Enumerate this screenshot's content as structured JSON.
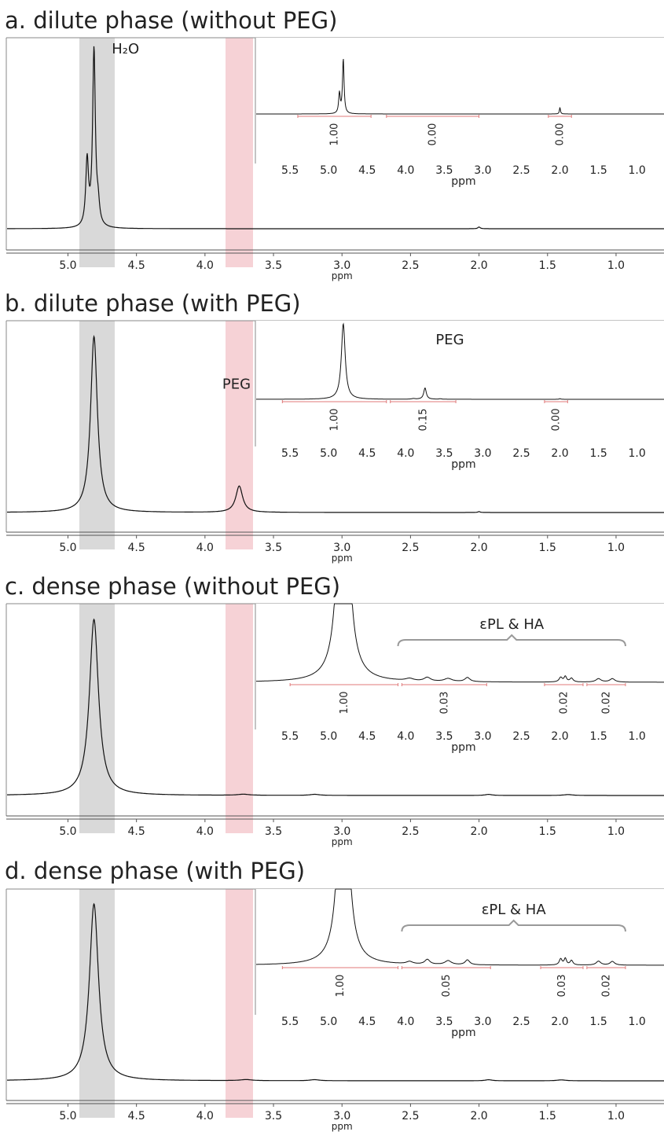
{
  "colors": {
    "water_band": "#d9d9d9",
    "peg_band": "#f6d2d6",
    "spectrum": "#111111",
    "integral": "#e07a7a",
    "brace": "#999999"
  },
  "chart_data": [
    {
      "type": "line",
      "title": "a. dilute phase (without PEG)",
      "xlabel": "ppm",
      "xlim": [
        5.45,
        0.65
      ],
      "xticks": [
        5.0,
        4.5,
        4.0,
        3.5,
        3.0,
        2.5,
        2.0,
        1.5,
        1.0
      ],
      "peaks": [
        {
          "ppm": 4.81,
          "height": 1.0,
          "width": 0.012
        },
        {
          "ppm": 4.86,
          "height": 0.37,
          "width": 0.012
        },
        {
          "ppm": 4.78,
          "height": 0.1,
          "width": 0.012
        },
        {
          "ppm": 2.0,
          "height": 0.01,
          "width": 0.01
        }
      ],
      "labels": [
        {
          "text": "H₂O",
          "ppm": 4.58,
          "level": 0.31
        }
      ],
      "inset": {
        "xlim": [
          5.95,
          0.65
        ],
        "xticks": [
          5.5,
          5.0,
          4.5,
          4.0,
          3.5,
          3.0,
          2.5,
          2.0,
          1.5,
          1.0
        ],
        "xlabel": "ppm",
        "peaks": [
          {
            "ppm": 4.81,
            "height": 1.0,
            "width": 0.012
          },
          {
            "ppm": 4.86,
            "height": 0.37,
            "width": 0.012
          },
          {
            "ppm": 2.0,
            "height": 0.12,
            "width": 0.008
          }
        ],
        "scale": 9,
        "integrals": [
          {
            "from": 5.4,
            "to": 4.45,
            "value": "1.00"
          },
          {
            "from": 4.25,
            "to": 3.05,
            "value": "0.00"
          },
          {
            "from": 2.15,
            "to": 1.85,
            "value": "0.00"
          }
        ],
        "labels": [],
        "brace": null
      }
    },
    {
      "type": "line",
      "title": "b. dilute phase (with PEG)",
      "xlabel": "ppm",
      "xlim": [
        5.45,
        0.65
      ],
      "xticks": [
        5.0,
        4.5,
        4.0,
        3.5,
        3.0,
        2.5,
        2.0,
        1.5,
        1.0
      ],
      "peaks": [
        {
          "ppm": 4.81,
          "height": 1.0,
          "width": 0.03
        },
        {
          "ppm": 3.75,
          "height": 0.15,
          "width": 0.03
        },
        {
          "ppm": 2.0,
          "height": 0.005,
          "width": 0.01
        }
      ],
      "labels": [
        {
          "text": "PEG",
          "ppm": 3.77,
          "level": 0.22
        }
      ],
      "inset": {
        "xlim": [
          5.95,
          0.65
        ],
        "xticks": [
          5.5,
          5.0,
          4.5,
          4.0,
          3.5,
          3.0,
          2.5,
          2.0,
          1.5,
          1.0
        ],
        "xlabel": "ppm",
        "peaks": [
          {
            "ppm": 4.81,
            "height": 1.0,
            "width": 0.03
          },
          {
            "ppm": 3.75,
            "height": 0.15,
            "width": 0.02
          },
          {
            "ppm": 3.9,
            "height": 0.008,
            "width": 0.03
          },
          {
            "ppm": 3.55,
            "height": 0.006,
            "width": 0.02
          },
          {
            "ppm": 2.0,
            "height": 0.008,
            "width": 0.012
          }
        ],
        "scale": 12,
        "integrals": [
          {
            "from": 5.6,
            "to": 4.25,
            "value": "1.00"
          },
          {
            "from": 4.2,
            "to": 3.35,
            "value": "0.15"
          },
          {
            "from": 2.2,
            "to": 1.9,
            "value": "0.00"
          }
        ],
        "labels": [
          {
            "text": "PEG",
            "ppm": 3.55,
            "level": 0.85
          }
        ],
        "brace": null
      }
    },
    {
      "type": "line",
      "title": "c. dense phase (without PEG)",
      "xlabel": "ppm",
      "xlim": [
        5.45,
        0.65
      ],
      "xticks": [
        5.0,
        4.5,
        4.0,
        3.5,
        3.0,
        2.5,
        2.0,
        1.5,
        1.0
      ],
      "peaks": [
        {
          "ppm": 4.81,
          "height": 1.0,
          "width": 0.04
        },
        {
          "ppm": 3.72,
          "height": 0.006,
          "width": 0.05
        },
        {
          "ppm": 3.2,
          "height": 0.006,
          "width": 0.04
        },
        {
          "ppm": 1.93,
          "height": 0.006,
          "width": 0.03
        },
        {
          "ppm": 1.35,
          "height": 0.005,
          "width": 0.04
        }
      ],
      "labels": [],
      "inset": {
        "xlim": [
          5.95,
          0.65
        ],
        "xticks": [
          5.5,
          5.0,
          4.5,
          4.0,
          3.5,
          3.0,
          2.5,
          2.0,
          1.5,
          1.0
        ],
        "xlabel": "ppm",
        "peaks": [
          {
            "ppm": 4.81,
            "height": 1.0,
            "width": 0.06
          },
          {
            "ppm": 3.95,
            "height": 0.006,
            "width": 0.06
          },
          {
            "ppm": 3.72,
            "height": 0.01,
            "width": 0.05
          },
          {
            "ppm": 3.45,
            "height": 0.008,
            "width": 0.06
          },
          {
            "ppm": 3.2,
            "height": 0.011,
            "width": 0.04
          },
          {
            "ppm": 1.99,
            "height": 0.012,
            "width": 0.025
          },
          {
            "ppm": 1.93,
            "height": 0.014,
            "width": 0.02
          },
          {
            "ppm": 1.85,
            "height": 0.01,
            "width": 0.025
          },
          {
            "ppm": 1.5,
            "height": 0.009,
            "width": 0.04
          },
          {
            "ppm": 1.32,
            "height": 0.009,
            "width": 0.04
          }
        ],
        "scale": 60,
        "integrals": [
          {
            "from": 5.5,
            "to": 4.1,
            "value": "1.00"
          },
          {
            "from": 4.05,
            "to": 2.95,
            "value": "0.03"
          },
          {
            "from": 2.2,
            "to": 1.7,
            "value": "0.02"
          },
          {
            "from": 1.65,
            "to": 1.15,
            "value": "0.02"
          }
        ],
        "labels": [],
        "brace": {
          "from": 4.1,
          "to": 1.15,
          "text": "εPL & HA"
        }
      }
    },
    {
      "type": "line",
      "title": "d. dense phase (with PEG)",
      "xlabel": "ppm",
      "xlim": [
        5.45,
        0.65
      ],
      "xticks": [
        5.0,
        4.5,
        4.0,
        3.5,
        3.0,
        2.5,
        2.0,
        1.5,
        1.0
      ],
      "peaks": [
        {
          "ppm": 4.81,
          "height": 1.0,
          "width": 0.04
        },
        {
          "ppm": 3.7,
          "height": 0.006,
          "width": 0.05
        },
        {
          "ppm": 3.2,
          "height": 0.006,
          "width": 0.04
        },
        {
          "ppm": 1.93,
          "height": 0.006,
          "width": 0.03
        },
        {
          "ppm": 1.4,
          "height": 0.005,
          "width": 0.04
        }
      ],
      "labels": [],
      "inset": {
        "xlim": [
          5.95,
          0.65
        ],
        "xticks": [
          5.5,
          5.0,
          4.5,
          4.0,
          3.5,
          3.0,
          2.5,
          2.0,
          1.5,
          1.0
        ],
        "xlabel": "ppm",
        "peaks": [
          {
            "ppm": 4.81,
            "height": 1.0,
            "width": 0.06
          },
          {
            "ppm": 3.95,
            "height": 0.008,
            "width": 0.05
          },
          {
            "ppm": 3.72,
            "height": 0.016,
            "width": 0.04
          },
          {
            "ppm": 3.45,
            "height": 0.013,
            "width": 0.05
          },
          {
            "ppm": 3.2,
            "height": 0.016,
            "width": 0.035
          },
          {
            "ppm": 1.99,
            "height": 0.02,
            "width": 0.022
          },
          {
            "ppm": 1.93,
            "height": 0.021,
            "width": 0.018
          },
          {
            "ppm": 1.85,
            "height": 0.015,
            "width": 0.022
          },
          {
            "ppm": 1.5,
            "height": 0.013,
            "width": 0.035
          },
          {
            "ppm": 1.32,
            "height": 0.012,
            "width": 0.035
          }
        ],
        "scale": 50,
        "integrals": [
          {
            "from": 5.6,
            "to": 4.1,
            "value": "1.00"
          },
          {
            "from": 4.05,
            "to": 2.9,
            "value": "0.05"
          },
          {
            "from": 2.25,
            "to": 1.7,
            "value": "0.03"
          },
          {
            "from": 1.65,
            "to": 1.15,
            "value": "0.02"
          }
        ],
        "labels": [],
        "brace": {
          "from": 4.05,
          "to": 1.15,
          "text": "εPL & HA"
        }
      }
    }
  ]
}
